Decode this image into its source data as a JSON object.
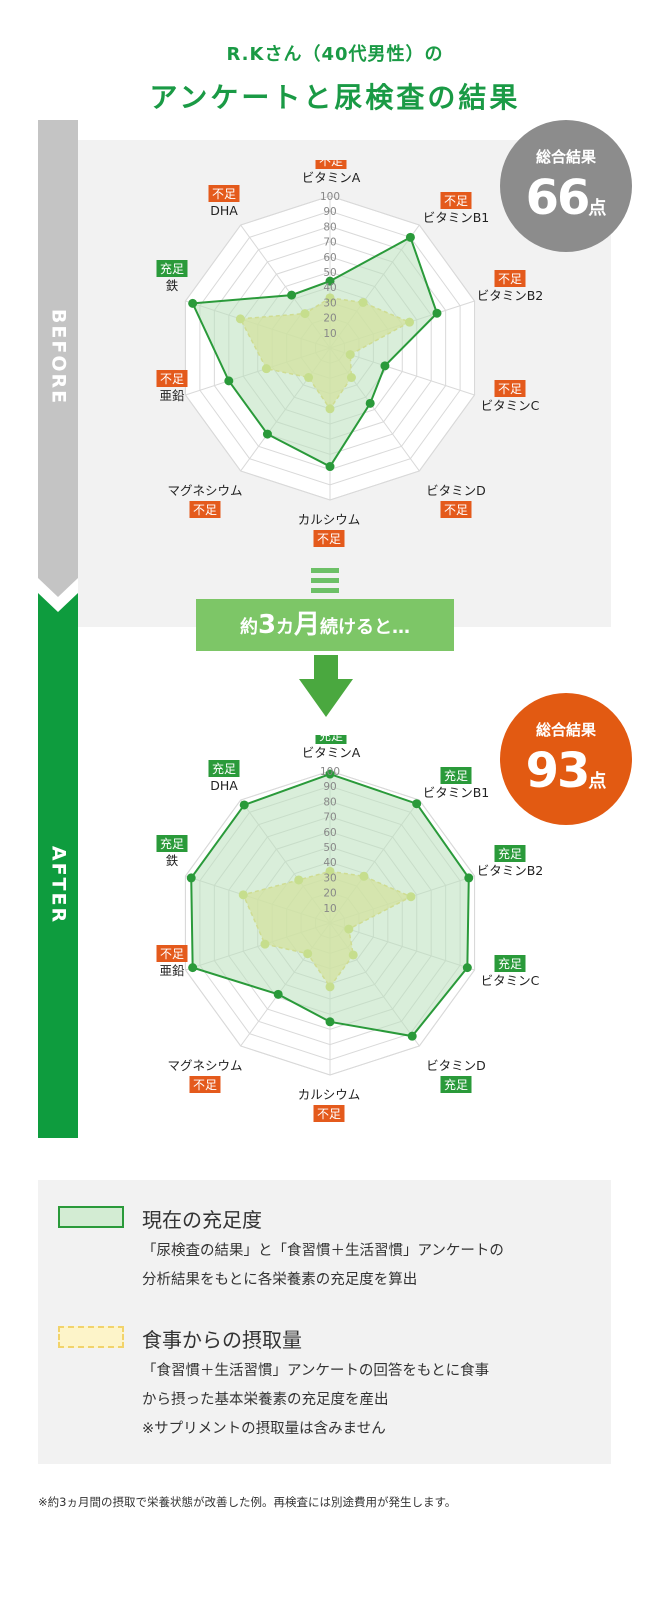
{
  "header": {
    "title_line1": "R.Kさん（40代男性）の",
    "title_line2": "アンケートと尿検査の結果"
  },
  "labels": {
    "before": "BEFORE",
    "after": "AFTER"
  },
  "status_labels": {
    "insufficient": "不足",
    "sufficient": "充足"
  },
  "before_badge": {
    "label": "総合結果",
    "value": "66",
    "unit": "点"
  },
  "after_badge": {
    "label": "総合結果",
    "value": "93",
    "unit": "点"
  },
  "transition": {
    "pre": "約",
    "number": "3",
    "mid": "カ",
    "month": "月",
    "post": "続けると…"
  },
  "legend": {
    "current": {
      "title": "現在の充足度",
      "lines": [
        "「尿検査の結果」と「食習慣＋生活習慣」アンケートの",
        "分析結果をもとに各栄養素の充足度を算出"
      ]
    },
    "intake": {
      "title": "食事からの摂取量",
      "lines": [
        "「食習慣＋生活習慣」アンケートの回答をもとに食事",
        "から摂った基本栄養素の充足度を産出",
        "※サプリメントの摂取量は含みません"
      ]
    }
  },
  "footnote": "※約3ヵ月間の摂取で栄養状態が改善した例。再検査には別途費用が発生します。",
  "colors": {
    "brand_green": "#1a9a45",
    "current_line": "#2a9a3a",
    "current_fill": "#b9e0bb",
    "intake_fill": "#f2e47e",
    "intake_dot": "#d4dc55",
    "insufficient": "#e45a1c",
    "sufficient": "#2a9a3a",
    "before_badge": "#8c8c8c",
    "after_badge": "#e25a12"
  },
  "chart_data": [
    {
      "type": "radar",
      "name": "BEFORE",
      "categories": [
        "ビタミンA",
        "ビタミンB1",
        "ビタミンB2",
        "ビタミンC",
        "ビタミンD",
        "カルシウム",
        "マグネシウム",
        "亜鉛",
        "鉄",
        "DHA"
      ],
      "ticks": [
        10,
        20,
        30,
        40,
        50,
        60,
        70,
        80,
        90,
        100
      ],
      "range": [
        0,
        100
      ],
      "series": [
        {
          "name": "現在の充足度",
          "values": [
            44,
            90,
            74,
            38,
            45,
            78,
            70,
            70,
            95,
            43
          ]
        },
        {
          "name": "食事からの摂取量",
          "values": [
            33,
            37,
            55,
            14,
            24,
            40,
            24,
            44,
            62,
            28
          ]
        }
      ],
      "status": [
        "不足",
        "不足",
        "不足",
        "不足",
        "不足",
        "不足",
        "不足",
        "不足",
        "充足",
        "不足"
      ]
    },
    {
      "type": "radar",
      "name": "AFTER",
      "categories": [
        "ビタミンA",
        "ビタミンB1",
        "ビタミンB2",
        "ビタミンC",
        "ビタミンD",
        "カルシウム",
        "マグネシウム",
        "亜鉛",
        "鉄",
        "DHA"
      ],
      "ticks": [
        10,
        20,
        30,
        40,
        50,
        60,
        70,
        80,
        90,
        100
      ],
      "range": [
        0,
        100
      ],
      "series": [
        {
          "name": "現在の充足度",
          "values": [
            98,
            97,
            96,
            95,
            92,
            65,
            58,
            95,
            96,
            96
          ]
        },
        {
          "name": "食事からの摂取量",
          "values": [
            34,
            38,
            56,
            13,
            26,
            42,
            25,
            45,
            60,
            35
          ]
        }
      ],
      "status": [
        "充足",
        "充足",
        "充足",
        "充足",
        "充足",
        "不足",
        "不足",
        "不足",
        "充足",
        "充足"
      ]
    }
  ]
}
